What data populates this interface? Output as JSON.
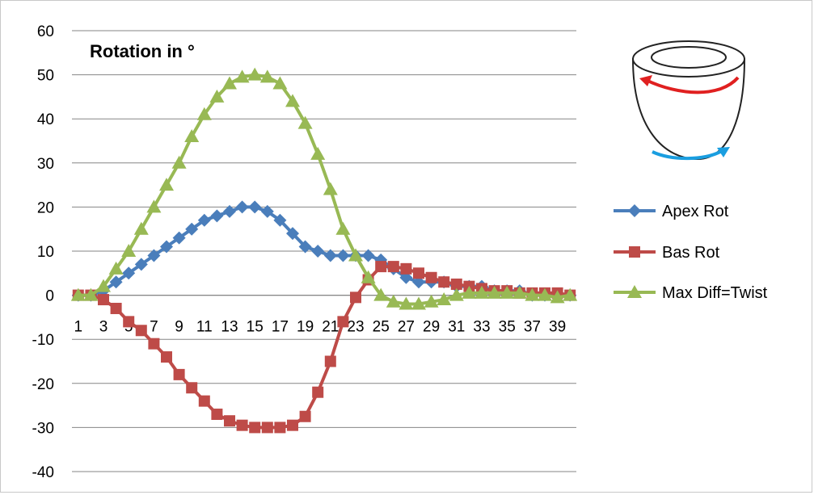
{
  "chart_data": {
    "type": "line",
    "title": "Rotation in °",
    "xlabel": "",
    "ylabel": "",
    "ylim": [
      -40,
      60
    ],
    "yticks": [
      -40,
      -30,
      -20,
      -10,
      0,
      10,
      20,
      30,
      40,
      50,
      60
    ],
    "categories": [
      1,
      2,
      3,
      4,
      5,
      6,
      7,
      8,
      9,
      10,
      11,
      12,
      13,
      14,
      15,
      16,
      17,
      18,
      19,
      20,
      21,
      22,
      23,
      24,
      25,
      26,
      27,
      28,
      29,
      30,
      31,
      32,
      33,
      34,
      35,
      36,
      37,
      38,
      39,
      40
    ],
    "xtick_labels": [
      "1",
      "3",
      "5",
      "7",
      "9",
      "11",
      "13",
      "15",
      "17",
      "19",
      "21",
      "23",
      "25",
      "27",
      "29",
      "31",
      "33",
      "35",
      "37",
      "39"
    ],
    "grid": true,
    "legend_position": "right",
    "series": [
      {
        "name": "Apex Rot",
        "color": "#4a7ebb",
        "marker": "diamond",
        "values": [
          0,
          0,
          1,
          3,
          5,
          7,
          9,
          11,
          13,
          15,
          17,
          18,
          19,
          20,
          20,
          19,
          17,
          14,
          11,
          10,
          9,
          9,
          9,
          9,
          8,
          6,
          4,
          3,
          3,
          3,
          2,
          2,
          2,
          1,
          1,
          1,
          0,
          0,
          0,
          0
        ]
      },
      {
        "name": "Bas Rot",
        "color": "#be4b48",
        "marker": "square",
        "values": [
          0,
          0,
          -1,
          -3,
          -6,
          -8,
          -11,
          -14,
          -18,
          -21,
          -24,
          -27,
          -28.5,
          -29.5,
          -30,
          -30,
          -30,
          -29.5,
          -27.5,
          -22,
          -15,
          -6,
          -0.5,
          3.5,
          6.5,
          6.5,
          6,
          5,
          4,
          3,
          2.5,
          2,
          1.5,
          1,
          1,
          0.5,
          0.5,
          0.5,
          0.5,
          0
        ]
      },
      {
        "name": "Max Diff=Twist",
        "color": "#98b954",
        "marker": "triangle",
        "values": [
          0,
          0,
          2,
          6,
          10,
          15,
          20,
          25,
          30,
          36,
          41,
          45,
          48,
          49.5,
          50,
          49.5,
          48,
          44,
          39,
          32,
          24,
          15,
          9,
          4,
          0,
          -1.5,
          -2,
          -2,
          -1.5,
          -1,
          0,
          0.5,
          0.5,
          0.5,
          0.5,
          0.5,
          0,
          0,
          -0.5,
          0
        ]
      }
    ]
  }
}
